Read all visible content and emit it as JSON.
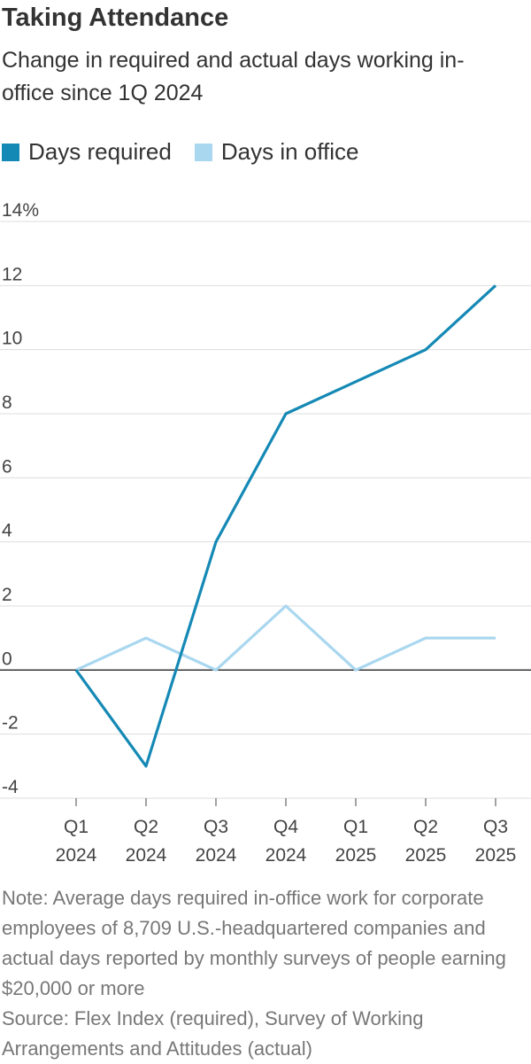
{
  "chart_data": {
    "type": "line",
    "title": "Taking Attendance",
    "subtitle": "Change in required and actual days working in-office since 1Q 2024",
    "categories": [
      "Q1\n2024",
      "Q2\n2024",
      "Q3\n2024",
      "Q4\n2024",
      "Q1\n2025",
      "Q2\n2025",
      "Q3\n2025"
    ],
    "series": [
      {
        "name": "Days required",
        "color": "#1589b5",
        "values": [
          0,
          -3,
          4,
          8,
          9,
          10,
          12
        ]
      },
      {
        "name": "Days in office",
        "color": "#a9d7ef",
        "values": [
          0,
          1,
          0,
          2,
          0,
          1,
          1
        ]
      }
    ],
    "ylim": [
      -4,
      14
    ],
    "yticks": [
      -4,
      -2,
      0,
      2,
      4,
      6,
      8,
      10,
      12,
      {
        "value": 14,
        "label": "14%"
      }
    ],
    "grid": true,
    "note": "Note: Average days required in-office work for corporate employees of 8,709 U.S.-headquartered companies and actual days reported by monthly surveys of people earning $20,000 or more",
    "source": "Source: Flex Index (required), Survey of Working Arrangements and Attitudes (actual)"
  }
}
